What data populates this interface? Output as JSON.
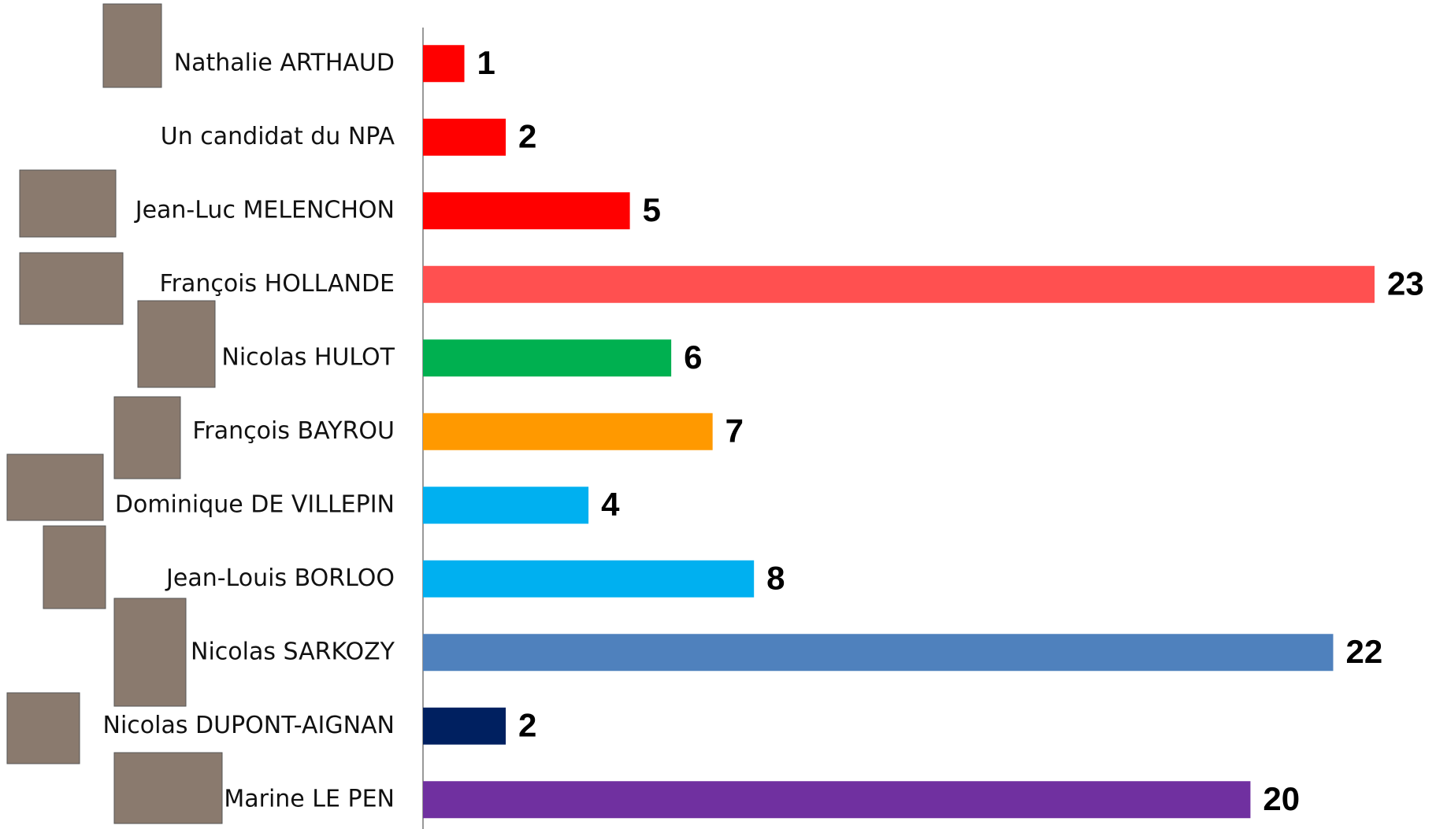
{
  "chart_data": {
    "type": "bar",
    "orientation": "horizontal",
    "categories": [
      "Nathalie ARTHAUD",
      "Un candidat du NPA",
      "Jean-Luc MELENCHON",
      "François HOLLANDE",
      "Nicolas HULOT",
      "François BAYROU",
      "Dominique DE VILLEPIN",
      "Jean-Louis BORLOO",
      "Nicolas SARKOZY",
      "Nicolas DUPONT-AIGNAN",
      "Marine LE PEN"
    ],
    "values": [
      1,
      2,
      5,
      23,
      6,
      7,
      4,
      8,
      22,
      2,
      20
    ],
    "colors": [
      "#ff0000",
      "#ff0000",
      "#ff0000",
      "#ff5050",
      "#00b050",
      "#ff9900",
      "#00b0f0",
      "#00b0f0",
      "#4f81bd",
      "#002060",
      "#7030a0"
    ]
  }
}
